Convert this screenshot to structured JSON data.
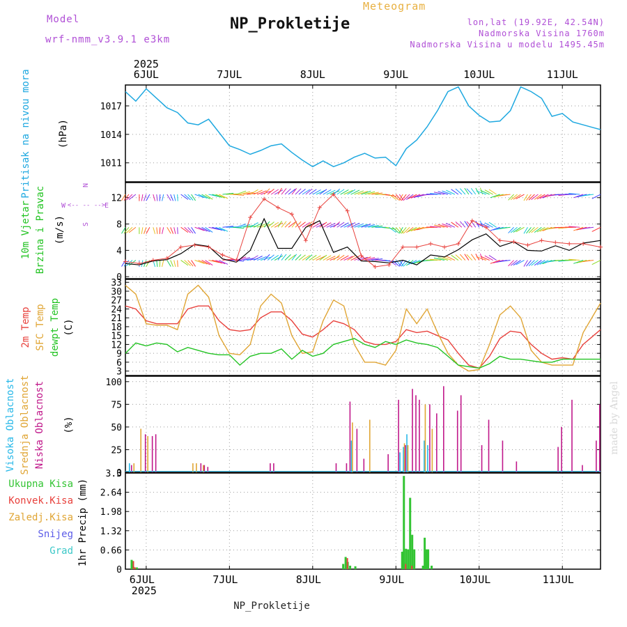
{
  "header": {
    "model_label": "Model",
    "model_name": "wrf-nmm_v3.9.1 e3km",
    "top_label": "Meteogram",
    "station": "NP_Prokletije",
    "coords": "lon,lat (19.92E, 42.54N)",
    "elevation": "Nadmorska Visina 1760m",
    "model_elevation": "Nadmorska Visina u modelu 1495.45m",
    "bottom_title": "NP_Prokletije",
    "watermark": "made by Angel"
  },
  "colors": {
    "pressure": "#1ea8e0",
    "temp2m": "#e8413c",
    "sfc": "#e0a534",
    "dewpt": "#22c322",
    "high_cloud": "#28b8e8",
    "mid_cloud": "#e0a534",
    "low_cloud": "#c0188a",
    "total_precip": "#33c433",
    "conv_precip": "#e8413c",
    "grid": "#9a9a9a",
    "purple_text": "#b04fd6",
    "orange_text": "#e8b040"
  },
  "time_axis": {
    "top_year": "2025",
    "bottom_year": "2025",
    "day_labels": [
      "6JUL",
      "7JUL",
      "8JUL",
      "9JUL",
      "10JUL",
      "11JUL"
    ],
    "day_hours": [
      18,
      42,
      66,
      90,
      114,
      138
    ],
    "range_hours": [
      12,
      149
    ]
  },
  "chart_data": [
    {
      "type": "line",
      "panel": "pressure",
      "ylabel_parts": [
        "Pritisak na nivou mora",
        "(hPa)"
      ],
      "yticks": [
        1011,
        1014,
        1017
      ],
      "ylim": [
        1009,
        1019.2
      ],
      "x_hours": [
        12,
        15,
        18,
        21,
        24,
        27,
        30,
        33,
        36,
        39,
        42,
        45,
        48,
        51,
        54,
        57,
        60,
        63,
        66,
        69,
        72,
        75,
        78,
        81,
        84,
        87,
        90,
        93,
        96,
        99,
        102,
        105,
        108,
        111,
        114,
        117,
        120,
        123,
        126,
        129,
        132,
        135,
        138,
        141,
        144,
        147,
        149
      ],
      "values": [
        1018.5,
        1017.5,
        1018.8,
        1017.8,
        1016.8,
        1016.3,
        1015.2,
        1015,
        1015.6,
        1014.2,
        1012.8,
        1012.4,
        1011.9,
        1012.3,
        1012.8,
        1013,
        1012.1,
        1011.3,
        1010.6,
        1011.2,
        1010.6,
        1011.0,
        1011.6,
        1012.0,
        1011.5,
        1011.6,
        1010.7,
        1012.5,
        1013.4,
        1014.8,
        1016.5,
        1018.5,
        1019.0,
        1017.0,
        1016.0,
        1015.3,
        1015.4,
        1016.5,
        1019.0,
        1018.5,
        1017.8,
        1015.9,
        1016.2,
        1015.3,
        1015.0,
        1014.7,
        1014.5
      ]
    },
    {
      "type": "line",
      "panel": "wind",
      "ylabel_parts": [
        "10m Vjetar",
        "Brzina i Pravac",
        "(m/s)"
      ],
      "compass": {
        "n": "N",
        "s": "S",
        "w": "W",
        "e": "E"
      },
      "yticks": [
        0,
        4,
        8,
        12
      ],
      "ylim": [
        -0.3,
        14.3
      ],
      "x_hours": [
        12,
        16,
        20,
        24,
        28,
        32,
        36,
        40,
        44,
        48,
        52,
        56,
        60,
        64,
        68,
        72,
        76,
        80,
        84,
        88,
        92,
        96,
        100,
        104,
        108,
        112,
        116,
        120,
        124,
        128,
        132,
        136,
        140,
        144,
        149
      ],
      "speed_values": [
        2.0,
        1.8,
        2.4,
        2.6,
        3.5,
        4.9,
        4.6,
        2.7,
        2.2,
        4.0,
        8.8,
        4.3,
        4.3,
        7.5,
        8.5,
        3.7,
        4.5,
        2.4,
        2.3,
        2.1,
        2.5,
        1.8,
        3.3,
        3.0,
        4.1,
        5.6,
        6.5,
        4.6,
        5.3,
        4.0,
        3.9,
        4.7,
        4.0,
        5.1,
        5.5
      ],
      "gust_values": [
        2.3,
        2.0,
        2.5,
        2.8,
        4.5,
        4.8,
        4.5,
        3.3,
        2.5,
        9.0,
        11.8,
        10.5,
        9.5,
        5.5,
        10.5,
        12.5,
        10.0,
        3.2,
        1.5,
        1.8,
        4.5,
        4.5,
        5.0,
        4.5,
        5.0,
        8.5,
        7.5,
        5.5,
        5.3,
        4.8,
        5.5,
        5.2,
        5.0,
        5.0,
        4.5
      ],
      "arrow_rows": [
        2.5,
        7.5,
        12.5
      ],
      "arrow_dirs_deg": [
        200,
        180,
        170,
        160,
        140,
        120,
        110,
        80,
        60,
        45,
        30,
        20,
        25,
        35,
        40,
        35,
        45,
        60,
        90,
        140,
        200,
        230,
        260,
        290,
        320,
        330,
        300,
        240,
        210,
        200,
        220,
        250,
        260,
        240,
        230
      ]
    },
    {
      "type": "line",
      "panel": "temperature",
      "ylabel_parts": [
        "2m Temp",
        "SFC Temp",
        "dewpt Temp",
        "(C)"
      ],
      "yticks": [
        3,
        6,
        9,
        12,
        15,
        18,
        21,
        24,
        27,
        30,
        33
      ],
      "ylim": [
        1.5,
        34
      ],
      "x_hours": [
        12,
        15,
        18,
        21,
        24,
        27,
        30,
        33,
        36,
        39,
        42,
        45,
        48,
        51,
        54,
        57,
        60,
        63,
        66,
        69,
        72,
        75,
        78,
        81,
        84,
        87,
        90,
        93,
        96,
        99,
        102,
        105,
        108,
        111,
        114,
        117,
        120,
        123,
        126,
        129,
        132,
        135,
        138,
        141,
        144,
        147,
        149
      ],
      "series": [
        {
          "name": "2m Temp",
          "values": [
            25,
            24,
            20,
            19,
            19,
            19,
            24,
            25,
            25,
            20,
            17,
            16.5,
            17,
            21,
            23,
            23,
            20,
            15.5,
            14.5,
            17,
            20,
            19,
            17,
            13,
            12,
            12,
            13,
            17,
            16,
            16.5,
            15,
            13.5,
            9,
            5,
            4,
            8,
            14,
            16.5,
            16,
            12,
            9,
            7,
            7.5,
            7,
            12,
            15,
            17
          ]
        },
        {
          "name": "SFC Temp",
          "values": [
            32,
            29,
            19,
            18.5,
            18.5,
            17,
            29,
            32,
            28,
            15,
            9,
            8.5,
            12,
            25,
            29,
            26,
            15,
            9,
            9.5,
            20,
            27,
            25,
            12,
            6,
            6,
            5,
            10,
            24,
            19,
            24,
            16,
            9,
            5,
            3,
            3.5,
            12,
            22,
            25,
            21,
            10,
            6,
            5,
            5,
            5,
            16,
            22,
            26
          ]
        },
        {
          "name": "dewpt Temp",
          "values": [
            9,
            12.5,
            11.5,
            12.5,
            12,
            9.5,
            11,
            10,
            9,
            8.5,
            8.5,
            5,
            8,
            9,
            9,
            10.5,
            7,
            10,
            8,
            9,
            12,
            13,
            14,
            12,
            11,
            13,
            12,
            13.5,
            12.5,
            12,
            11,
            8,
            5,
            4.5,
            4,
            5.5,
            8,
            7,
            7,
            6.5,
            6,
            6,
            7,
            7,
            7,
            7,
            7
          ]
        }
      ]
    },
    {
      "type": "bar",
      "panel": "clouds",
      "ylabel_parts": [
        "Visoka Oblacnost",
        "Srednja Oblacnost",
        "Niska Oblacnost",
        "(%)"
      ],
      "yticks": [
        0,
        25,
        50,
        75,
        100
      ],
      "ylim": [
        0,
        106
      ],
      "series": [
        {
          "name": "Visoka Oblacnost",
          "bars": [
            [
              13,
              10
            ],
            [
              77,
              35
            ],
            [
              91,
              22
            ],
            [
              92,
              28
            ],
            [
              93,
              42
            ],
            [
              98,
              35
            ],
            [
              99,
              30
            ]
          ]
        },
        {
          "name": "Srednja Oblacnost",
          "bars": [
            [
              14,
              10
            ],
            [
              16,
              48
            ],
            [
              18,
              40
            ],
            [
              31,
              10
            ],
            [
              32,
              10
            ],
            [
              34,
              8
            ],
            [
              77,
              55
            ],
            [
              82,
              58
            ],
            [
              92,
              32
            ],
            [
              93,
              30
            ],
            [
              98,
              75
            ],
            [
              100,
              48
            ]
          ]
        },
        {
          "name": "Niska Oblacnost",
          "bars": [
            [
              13,
              8
            ],
            [
              17,
              42
            ],
            [
              19,
              40
            ],
            [
              20,
              42
            ],
            [
              33,
              10
            ],
            [
              34,
              8
            ],
            [
              35,
              6
            ],
            [
              53,
              10
            ],
            [
              54,
              10
            ],
            [
              72,
              10
            ],
            [
              75,
              10
            ],
            [
              76,
              78
            ],
            [
              78,
              48
            ],
            [
              80,
              15
            ],
            [
              87,
              20
            ],
            [
              90,
              80
            ],
            [
              92,
              30
            ],
            [
              94,
              92
            ],
            [
              95,
              85
            ],
            [
              96,
              80
            ],
            [
              99,
              75
            ],
            [
              101,
              65
            ],
            [
              103,
              95
            ],
            [
              107,
              68
            ],
            [
              108,
              85
            ],
            [
              114,
              30
            ],
            [
              116,
              58
            ],
            [
              120,
              35
            ],
            [
              124,
              12
            ],
            [
              136,
              28
            ],
            [
              137,
              50
            ],
            [
              140,
              80
            ],
            [
              143,
              8
            ],
            [
              147,
              35
            ],
            [
              148,
              75
            ]
          ]
        }
      ]
    },
    {
      "type": "bar",
      "panel": "precipitation",
      "ylabel_parts": [
        "1hr Precip (mm)"
      ],
      "legend": [
        "Ukupna Kisa",
        "Konvek.Kisa",
        "Zaledj.Kisa",
        "Snijeg",
        "Grad"
      ],
      "yticks": [
        0,
        0.66,
        1.32,
        1.98,
        2.64,
        3.3
      ],
      "ylim": [
        0,
        3.3
      ],
      "series": [
        {
          "name": "Ukupna Kisa",
          "bars": [
            [
              13.5,
              0.32
            ],
            [
              14,
              0.08
            ],
            [
              15,
              0.06
            ],
            [
              74.5,
              0.18
            ],
            [
              75.2,
              0.42
            ],
            [
              75.8,
              0.25
            ],
            [
              76.5,
              0.12
            ],
            [
              78,
              0.1
            ],
            [
              91.5,
              0.6
            ],
            [
              92,
              3.2
            ],
            [
              92.6,
              0.7
            ],
            [
              93.2,
              0.68
            ],
            [
              93.8,
              2.45
            ],
            [
              94.4,
              1.18
            ],
            [
              95,
              0.68
            ],
            [
              97.5,
              0.12
            ],
            [
              98,
              1.08
            ],
            [
              98.5,
              0.68
            ],
            [
              99,
              0.68
            ],
            [
              100,
              0.12
            ]
          ]
        },
        {
          "name": "Konvek.Kisa",
          "bars": [
            [
              13.5,
              0.28
            ],
            [
              14,
              0.06
            ],
            [
              75.2,
              0.38
            ],
            [
              92,
              0.18
            ],
            [
              93.8,
              0.12
            ]
          ]
        }
      ]
    }
  ]
}
